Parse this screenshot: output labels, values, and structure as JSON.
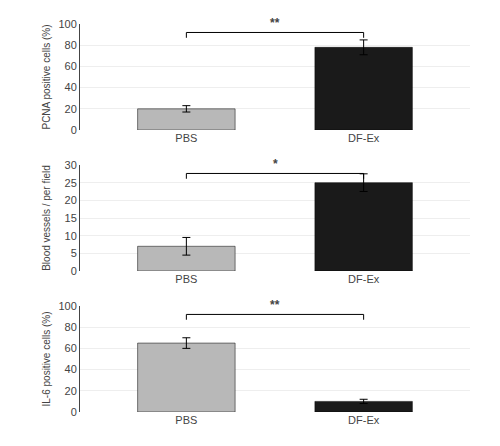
{
  "chart_data": [
    {
      "type": "bar",
      "ylabel": "PCNA positive cells (%)",
      "categories": [
        "PBS",
        "DF-Ex"
      ],
      "values": [
        20,
        78
      ],
      "errors": [
        3,
        7
      ],
      "colors": [
        "#b8b8b8",
        "#1a1a1a"
      ],
      "ylim": [
        0,
        100
      ],
      "yticks": [
        0,
        20,
        40,
        60,
        80,
        100
      ],
      "annotations": [
        "**"
      ]
    },
    {
      "type": "bar",
      "ylabel": "Blood vessels / per field",
      "categories": [
        "PBS",
        "DF-Ex"
      ],
      "values": [
        7,
        25
      ],
      "errors": [
        2.5,
        2.5
      ],
      "colors": [
        "#b8b8b8",
        "#1a1a1a"
      ],
      "ylim": [
        0,
        30
      ],
      "yticks": [
        0,
        5,
        10,
        15,
        20,
        25,
        30
      ],
      "annotations": [
        "*"
      ]
    },
    {
      "type": "bar",
      "ylabel": "IL-6 positive cells (%)",
      "categories": [
        "PBS",
        "DF-Ex"
      ],
      "values": [
        65,
        10
      ],
      "errors": [
        5,
        2
      ],
      "colors": [
        "#b8b8b8",
        "#1a1a1a"
      ],
      "ylim": [
        0,
        100
      ],
      "yticks": [
        0,
        20,
        40,
        60,
        80,
        100
      ],
      "annotations": [
        "**"
      ]
    }
  ]
}
